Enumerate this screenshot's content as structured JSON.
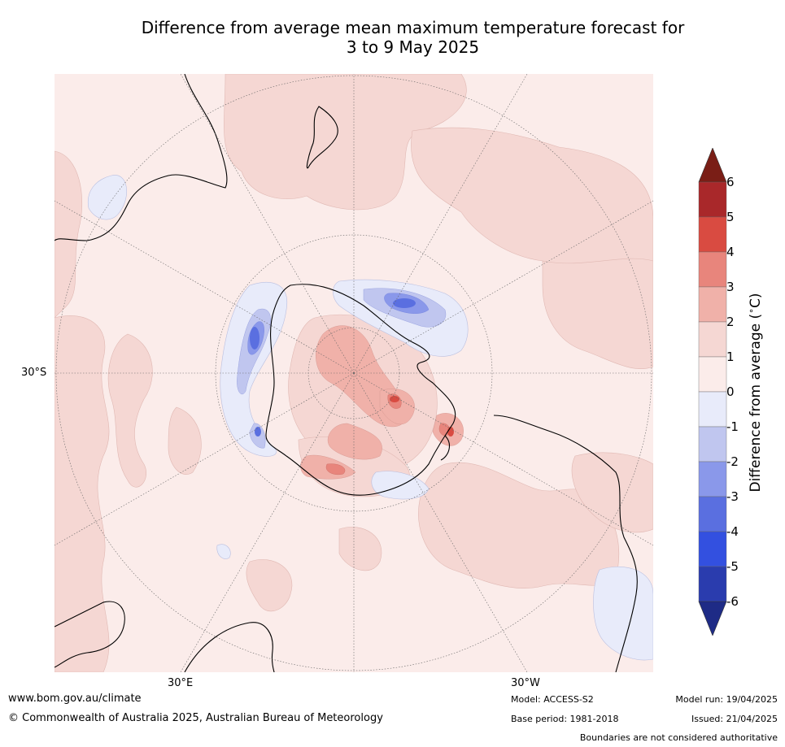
{
  "title_line1": "Difference from average mean maximum temperature forecast for",
  "title_line2": "3 to 9 May 2025",
  "map": {
    "projection": "south-polar stereographic",
    "lat_label": "30°S",
    "lon_labels": [
      "30°E",
      "30°W"
    ],
    "background_color": "#fbecea"
  },
  "colorbar": {
    "label": "Difference from average ( °C)",
    "label_text": "Difference from average ($^\\circ$C)",
    "ticks": [
      "6",
      "5",
      "4",
      "3",
      "2",
      "1",
      "0",
      "-1",
      "-2",
      "-3",
      "-4",
      "-5",
      "-6"
    ],
    "colors": [
      "#7a1e16",
      "#a9282a",
      "#d94b41",
      "#e8857c",
      "#f0b1a9",
      "#f5d7d3",
      "#fbecea",
      "#e8ebfa",
      "#c0c6ef",
      "#8a98ea",
      "#5a6fe0",
      "#3350e0",
      "#2a3cae",
      "#1e2b86"
    ]
  },
  "footer": {
    "website": "www.bom.gov.au/climate",
    "copyright": "© Commonwealth of Australia 2025, Australian Bureau of Meteorology",
    "model": "Model: ACCESS-S2",
    "base_period": "Base period: 1981-2018",
    "model_run": "Model run: 19/04/2025",
    "issued": "Issued: 21/04/2025",
    "disclaimer": "Boundaries are not considered authoritative"
  }
}
